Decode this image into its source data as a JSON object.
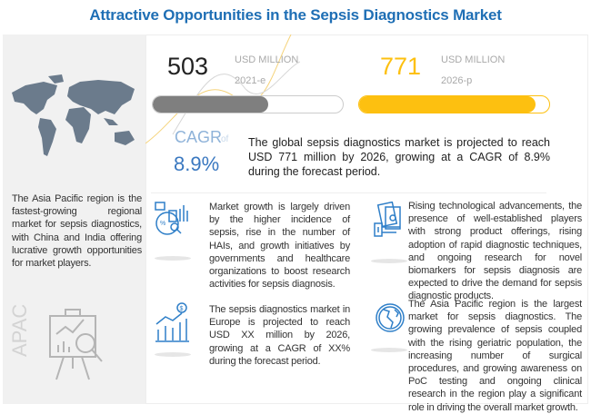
{
  "title": "Attractive Opportunities in the Sepsis Diagnostics Market",
  "market_2021": {
    "value": "503",
    "unit": "USD MILLION",
    "year": "2021-e",
    "bar_fill_percent": 61
  },
  "market_2026": {
    "value": "771",
    "unit": "USD MILLION",
    "year": "2026-p",
    "bar_fill_percent": 93
  },
  "cagr": {
    "label": "CAGR",
    "of": "of",
    "value": "8.9%"
  },
  "summary": "The global sepsis diagnostics market is projected to reach USD 771 million by 2026, growing at a CAGR of 8.9% during the forecast period.",
  "left_panel": {
    "text": "The Asia Pacific region is the fastest-growing regional market for sepsis diagnostics, with China and India offering lucrative growth opportunities for market players.",
    "region_label": "APAC"
  },
  "insights": [
    {
      "icon": "analytics-report-icon",
      "text": "Market growth is largely driven by the higher incidence of sepsis, rise in the number of HAIs, and growth initiatives by governments and healthcare organizations to boost research activities for sepsis diagnosis."
    },
    {
      "icon": "money-hand-icon",
      "text": "Rising technological advancements, the presence of well-established players with strong product offerings, rising adoption of rapid diagnostic techniques, and ongoing research for novel biomarkers for sepsis diagnosis are expected to drive the demand for sepsis diagnostic products."
    },
    {
      "icon": "growth-chart-dollar-icon",
      "text": "The sepsis diagnostics market in Europe is projected to reach USD XX million by 2026, growing at a CAGR of XX% during the forecast period."
    },
    {
      "icon": "globe-icon",
      "text": "The Asia Pacific region is the largest market for sepsis diagnostics. The growing prevalence of sepsis coupled with the rising geriatric population, the increasing number of surgical procedures, and growing awareness on PoC testing and ongoing clinical research in the region play a significant role in driving the overall market growth."
    }
  ],
  "colors": {
    "title": "#1f6fb5",
    "accent_yellow": "#fdc010",
    "bar_gray": "#7f7f7f",
    "cagr_blue": "#3a78c0",
    "icon_blue": "#2f7fc8"
  }
}
